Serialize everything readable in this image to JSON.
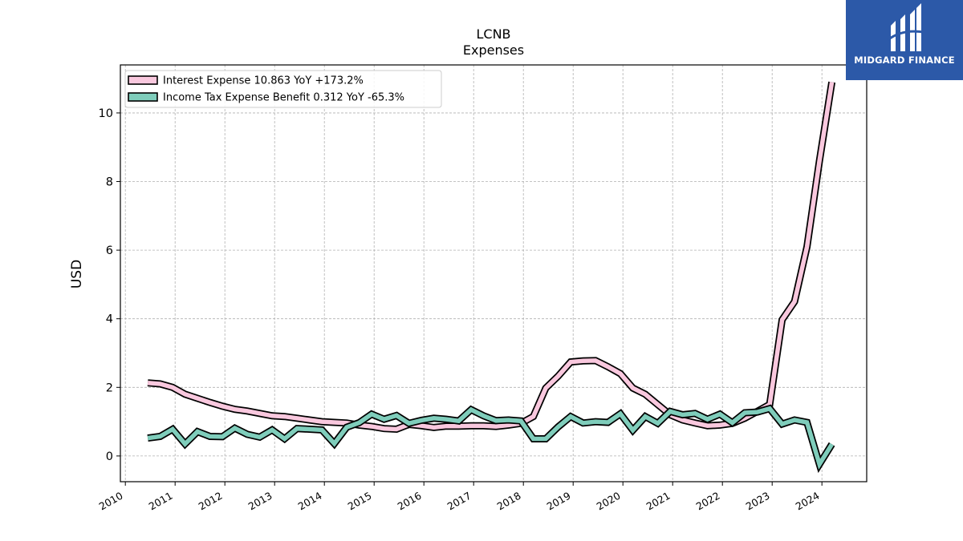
{
  "brand": {
    "name": "MIDGARD FINANCE",
    "bg_color": "#2c59a8",
    "icon": "midgard-logo-icon"
  },
  "chart_data": {
    "type": "line",
    "title": "LCNB",
    "subtitle": "Expenses",
    "xlabel": "",
    "ylabel": "USD",
    "xlim": [
      2009.9,
      2024.9
    ],
    "ylim": [
      -0.75,
      11.4
    ],
    "x_ticks": [
      2010,
      2011,
      2012,
      2013,
      2014,
      2015,
      2016,
      2017,
      2018,
      2019,
      2020,
      2021,
      2022,
      2023,
      2024
    ],
    "y_ticks": [
      0,
      2,
      4,
      6,
      8,
      10
    ],
    "grid": true,
    "legend_position": "top-left",
    "x": [
      2010.45,
      2010.7,
      2010.95,
      2011.2,
      2011.45,
      2011.7,
      2011.95,
      2012.2,
      2012.45,
      2012.7,
      2012.95,
      2013.2,
      2013.45,
      2013.7,
      2013.95,
      2014.2,
      2014.45,
      2014.7,
      2014.95,
      2015.2,
      2015.45,
      2015.7,
      2015.95,
      2016.2,
      2016.45,
      2016.7,
      2016.95,
      2017.2,
      2017.45,
      2017.7,
      2017.95,
      2018.2,
      2018.45,
      2018.7,
      2018.95,
      2019.2,
      2019.45,
      2019.7,
      2019.95,
      2020.2,
      2020.45,
      2020.7,
      2020.95,
      2021.2,
      2021.45,
      2021.7,
      2021.95,
      2022.2,
      2022.45,
      2022.7,
      2022.95,
      2023.2,
      2023.45,
      2023.7,
      2023.95,
      2024.2
    ],
    "series": [
      {
        "name": "Interest Expense",
        "legend_label": "Interest Expense  10.863 YoY +173.2%",
        "color": "#f9c8de",
        "values": [
          2.13,
          2.1,
          2.0,
          1.8,
          1.68,
          1.56,
          1.45,
          1.36,
          1.31,
          1.24,
          1.17,
          1.15,
          1.1,
          1.05,
          1.0,
          0.98,
          0.96,
          0.9,
          0.86,
          0.8,
          0.78,
          0.92,
          0.88,
          0.83,
          0.87,
          0.87,
          0.88,
          0.88,
          0.86,
          0.9,
          0.95,
          1.15,
          1.98,
          2.33,
          2.74,
          2.77,
          2.78,
          2.6,
          2.4,
          1.98,
          1.8,
          1.5,
          1.2,
          1.05,
          0.96,
          0.88,
          0.9,
          0.95,
          1.1,
          1.3,
          1.5,
          3.97,
          4.5,
          6.1,
          8.6,
          10.9
        ]
      },
      {
        "name": "Income Tax Expense Benefit",
        "legend_label": "Income Tax Expense Benefit  0.312 YoY -65.3%",
        "color": "#7fcdbb",
        "values": [
          0.52,
          0.57,
          0.78,
          0.35,
          0.71,
          0.57,
          0.56,
          0.81,
          0.63,
          0.55,
          0.76,
          0.5,
          0.8,
          0.78,
          0.76,
          0.36,
          0.84,
          0.97,
          1.22,
          1.07,
          1.18,
          0.95,
          1.04,
          1.1,
          1.07,
          1.02,
          1.35,
          1.17,
          1.03,
          1.05,
          1.02,
          0.5,
          0.5,
          0.85,
          1.15,
          0.96,
          1.0,
          0.98,
          1.23,
          0.75,
          1.15,
          0.95,
          1.3,
          1.2,
          1.24,
          1.07,
          1.22,
          0.97,
          1.26,
          1.28,
          1.38,
          0.93,
          1.05,
          0.98,
          -0.24,
          0.34
        ]
      }
    ]
  }
}
